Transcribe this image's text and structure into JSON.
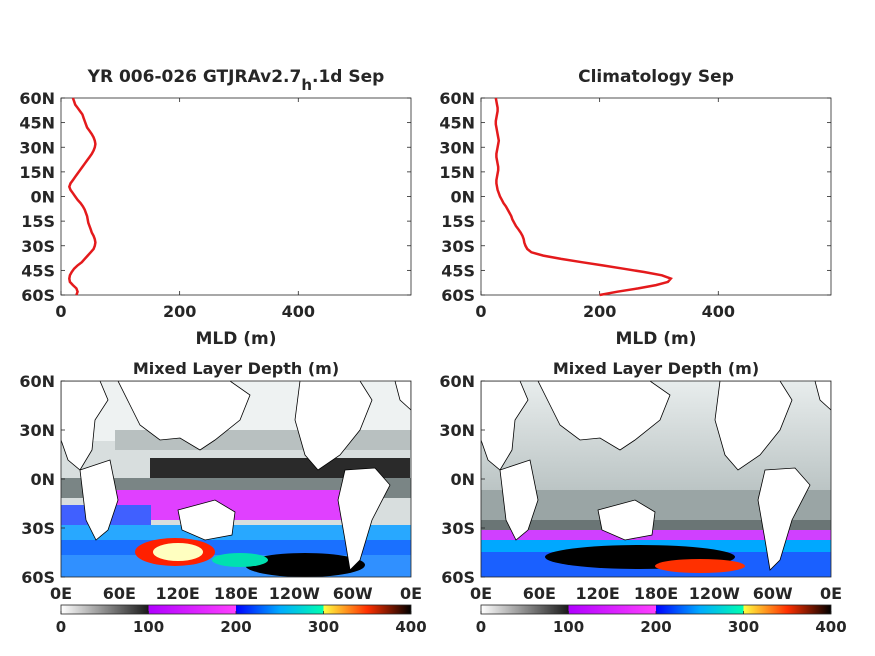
{
  "chart_data": [
    {
      "type": "line",
      "title_main": "YR 006-026 GTJRAv2.7",
      "title_sub": "h",
      "title_suffix": ".1d Sep",
      "xlabel": "MLD (m)",
      "ylabel": "",
      "xlim": [
        0,
        590
      ],
      "ylim": [
        -60,
        60
      ],
      "x_ticks": [
        "0",
        "200",
        "400"
      ],
      "y_ticks": [
        "60N",
        "45N",
        "30N",
        "15N",
        "0N",
        "15S",
        "30S",
        "45S",
        "60S"
      ],
      "line_color": "#e41a1c",
      "series": [
        {
          "points": [
            [
              26,
              -60
            ],
            [
              28,
              -58
            ],
            [
              26,
              -56
            ],
            [
              20,
              -54
            ],
            [
              15,
              -52
            ],
            [
              14,
              -50
            ],
            [
              15,
              -48
            ],
            [
              18,
              -46
            ],
            [
              22,
              -44
            ],
            [
              28,
              -42
            ],
            [
              35,
              -40
            ],
            [
              40,
              -38
            ],
            [
              45,
              -36
            ],
            [
              50,
              -34
            ],
            [
              55,
              -32
            ],
            [
              57,
              -30
            ],
            [
              58,
              -28
            ],
            [
              57,
              -26
            ],
            [
              55,
              -24
            ],
            [
              52,
              -22
            ],
            [
              50,
              -20
            ],
            [
              48,
              -18
            ],
            [
              46,
              -16
            ],
            [
              45,
              -14
            ],
            [
              44,
              -12
            ],
            [
              42,
              -10
            ],
            [
              40,
              -8
            ],
            [
              37,
              -6
            ],
            [
              33,
              -4
            ],
            [
              28,
              -2
            ],
            [
              24,
              0
            ],
            [
              20,
              2
            ],
            [
              16,
              4
            ],
            [
              14,
              6
            ],
            [
              16,
              8
            ],
            [
              20,
              10
            ],
            [
              24,
              12
            ],
            [
              28,
              14
            ],
            [
              32,
              16
            ],
            [
              36,
              18
            ],
            [
              40,
              20
            ],
            [
              44,
              22
            ],
            [
              48,
              24
            ],
            [
              52,
              26
            ],
            [
              55,
              28
            ],
            [
              57,
              30
            ],
            [
              58,
              32
            ],
            [
              57,
              34
            ],
            [
              55,
              36
            ],
            [
              52,
              38
            ],
            [
              48,
              40
            ],
            [
              44,
              42
            ],
            [
              42,
              44
            ],
            [
              40,
              46
            ],
            [
              38,
              48
            ],
            [
              36,
              50
            ],
            [
              32,
              52
            ],
            [
              28,
              54
            ],
            [
              24,
              56
            ],
            [
              22,
              58
            ],
            [
              20,
              60
            ]
          ]
        }
      ]
    },
    {
      "type": "line",
      "title_main": "Climatology Sep",
      "xlabel": "MLD (m)",
      "ylabel": "",
      "xlim": [
        0,
        590
      ],
      "ylim": [
        -60,
        60
      ],
      "x_ticks": [
        "0",
        "200",
        "400"
      ],
      "y_ticks": [
        "60N",
        "45N",
        "30N",
        "15N",
        "0N",
        "15S",
        "30S",
        "45S",
        "60S"
      ],
      "line_color": "#e41a1c",
      "series": [
        {
          "points": [
            [
              200,
              -60
            ],
            [
              230,
              -58
            ],
            [
              265,
              -56
            ],
            [
              295,
              -54
            ],
            [
              315,
              -52
            ],
            [
              320,
              -50
            ],
            [
              305,
              -48
            ],
            [
              275,
              -46
            ],
            [
              240,
              -44
            ],
            [
              205,
              -42
            ],
            [
              170,
              -40
            ],
            [
              135,
              -38
            ],
            [
              105,
              -36
            ],
            [
              85,
              -34
            ],
            [
              78,
              -32
            ],
            [
              75,
              -30
            ],
            [
              73,
              -28
            ],
            [
              72,
              -26
            ],
            [
              70,
              -24
            ],
            [
              67,
              -22
            ],
            [
              63,
              -20
            ],
            [
              59,
              -18
            ],
            [
              56,
              -16
            ],
            [
              53,
              -14
            ],
            [
              51,
              -12
            ],
            [
              48,
              -10
            ],
            [
              45,
              -8
            ],
            [
              42,
              -6
            ],
            [
              38,
              -4
            ],
            [
              35,
              -2
            ],
            [
              32,
              0
            ],
            [
              30,
              2
            ],
            [
              28,
              4
            ],
            [
              27,
              6
            ],
            [
              26,
              8
            ],
            [
              26,
              10
            ],
            [
              27,
              12
            ],
            [
              28,
              14
            ],
            [
              29,
              16
            ],
            [
              29,
              18
            ],
            [
              28,
              20
            ],
            [
              27,
              22
            ],
            [
              26,
              24
            ],
            [
              26,
              26
            ],
            [
              27,
              28
            ],
            [
              28,
              30
            ],
            [
              29,
              32
            ],
            [
              30,
              34
            ],
            [
              29,
              36
            ],
            [
              28,
              38
            ],
            [
              27,
              40
            ],
            [
              26,
              42
            ],
            [
              25,
              44
            ],
            [
              25,
              46
            ],
            [
              26,
              48
            ],
            [
              27,
              50
            ],
            [
              28,
              52
            ],
            [
              28,
              54
            ],
            [
              27,
              56
            ],
            [
              26,
              58
            ],
            [
              25,
              60
            ]
          ]
        }
      ]
    },
    {
      "type": "heatmap",
      "title": "Mixed Layer Depth (m)",
      "x_ticks": [
        "0E",
        "60E",
        "120E",
        "180E",
        "120W",
        "60W",
        "0E"
      ],
      "y_ticks": [
        "60N",
        "30N",
        "0N",
        "30S",
        "60S"
      ],
      "colorbar_ticks": [
        "0",
        "100",
        "200",
        "300",
        "400"
      ],
      "colorbar_range": [
        0,
        400
      ]
    },
    {
      "type": "heatmap",
      "title": "Mixed Layer Depth (m)",
      "x_ticks": [
        "0E",
        "60E",
        "120E",
        "180E",
        "120W",
        "60W",
        "0E"
      ],
      "y_ticks": [
        "60N",
        "30N",
        "0N",
        "30S",
        "60S"
      ],
      "colorbar_ticks": [
        "0",
        "100",
        "200",
        "300",
        "400"
      ],
      "colorbar_range": [
        0,
        400
      ]
    }
  ]
}
